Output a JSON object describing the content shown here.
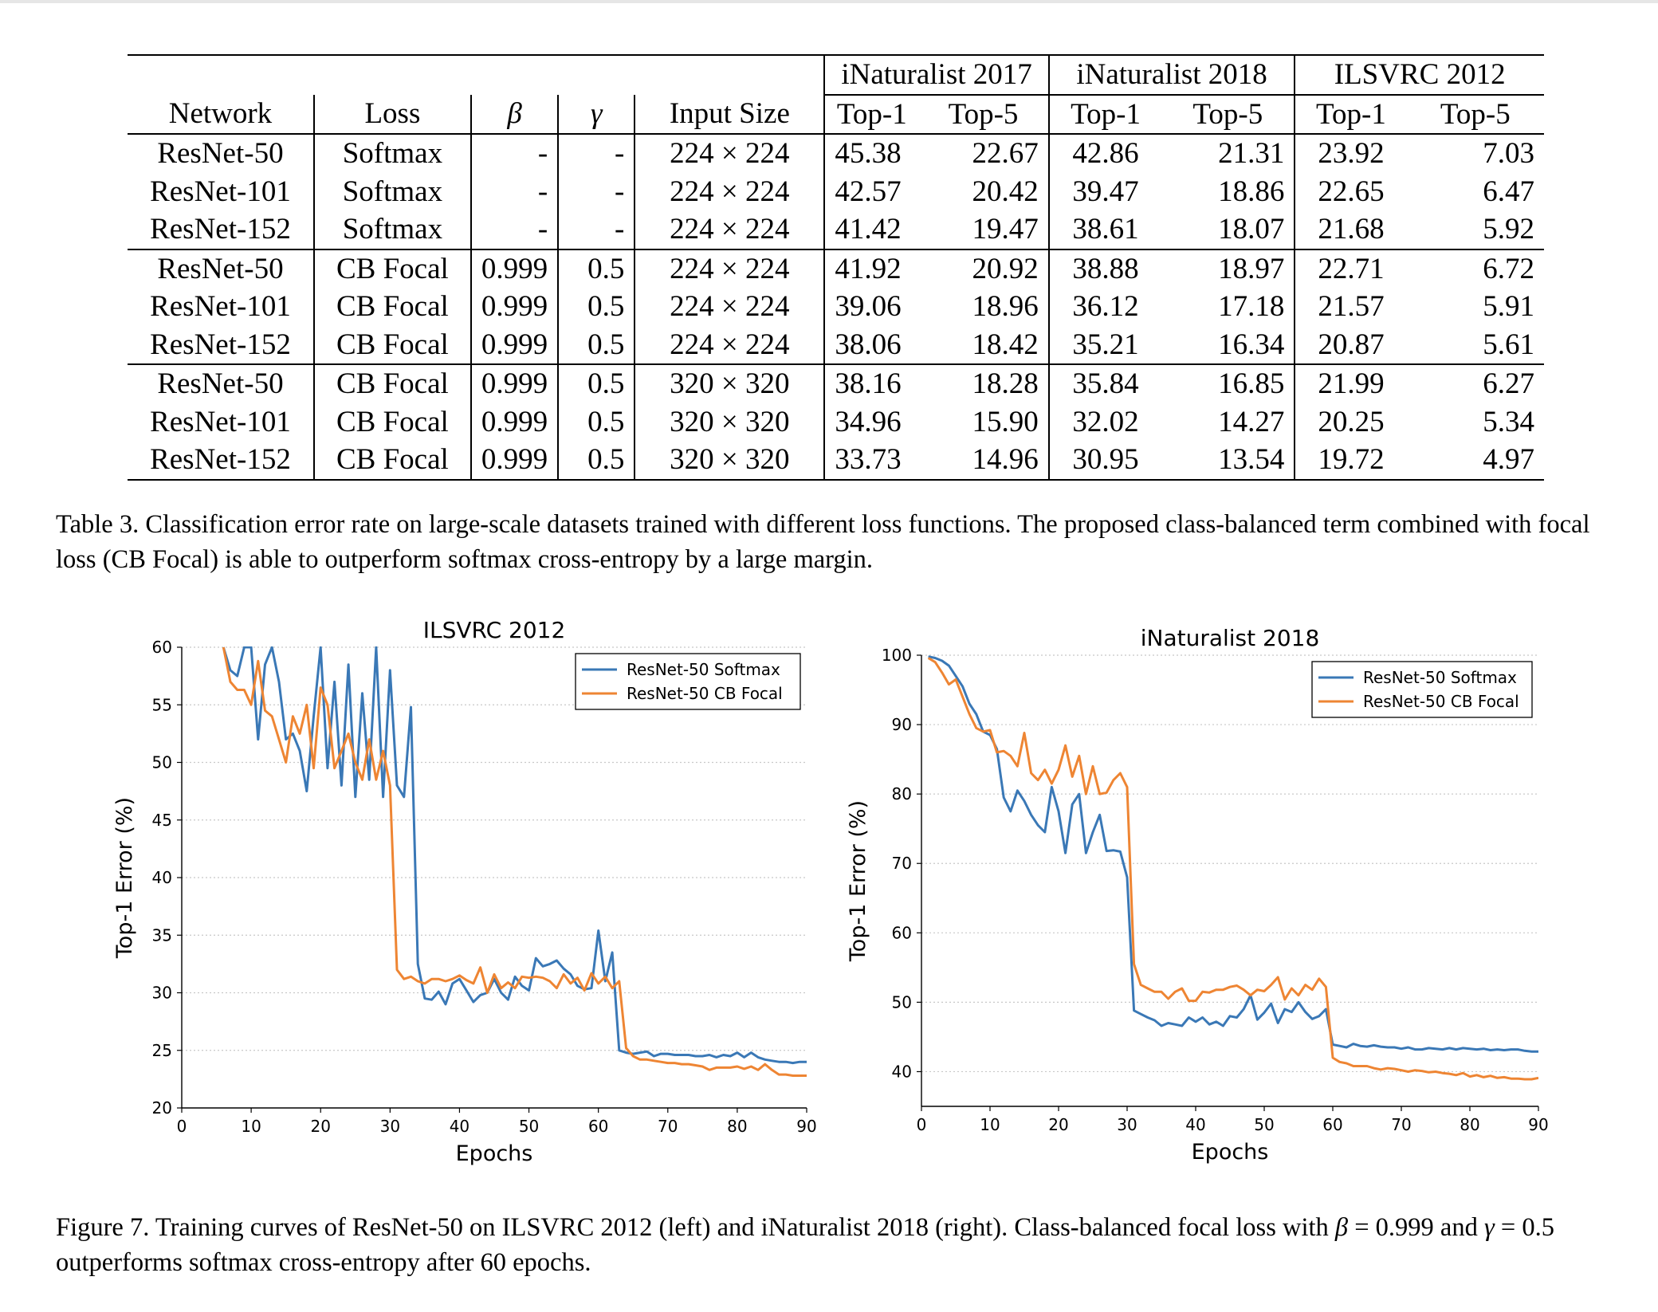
{
  "table": {
    "group_headers": [
      "iNaturalist 2017",
      "iNaturalist 2018",
      "ILSVRC 2012"
    ],
    "column_headers": [
      "Network",
      "Loss",
      "β",
      "γ",
      "Input Size",
      "Top-1",
      "Top-5",
      "Top-1",
      "Top-5",
      "Top-1",
      "Top-5"
    ],
    "rows": [
      [
        "ResNet-50",
        "Softmax",
        "-",
        "-",
        "224 × 224",
        "45.38",
        "22.67",
        "42.86",
        "21.31",
        "23.92",
        "7.03"
      ],
      [
        "ResNet-101",
        "Softmax",
        "-",
        "-",
        "224 × 224",
        "42.57",
        "20.42",
        "39.47",
        "18.86",
        "22.65",
        "6.47"
      ],
      [
        "ResNet-152",
        "Softmax",
        "-",
        "-",
        "224 × 224",
        "41.42",
        "19.47",
        "38.61",
        "18.07",
        "21.68",
        "5.92"
      ],
      [
        "ResNet-50",
        "CB Focal",
        "0.999",
        "0.5",
        "224 × 224",
        "41.92",
        "20.92",
        "38.88",
        "18.97",
        "22.71",
        "6.72"
      ],
      [
        "ResNet-101",
        "CB Focal",
        "0.999",
        "0.5",
        "224 × 224",
        "39.06",
        "18.96",
        "36.12",
        "17.18",
        "21.57",
        "5.91"
      ],
      [
        "ResNet-152",
        "CB Focal",
        "0.999",
        "0.5",
        "224 × 224",
        "38.06",
        "18.42",
        "35.21",
        "16.34",
        "20.87",
        "5.61"
      ],
      [
        "ResNet-50",
        "CB Focal",
        "0.999",
        "0.5",
        "320 × 320",
        "38.16",
        "18.28",
        "35.84",
        "16.85",
        "21.99",
        "6.27"
      ],
      [
        "ResNet-101",
        "CB Focal",
        "0.999",
        "0.5",
        "320 × 320",
        "34.96",
        "15.90",
        "32.02",
        "14.27",
        "20.25",
        "5.34"
      ],
      [
        "ResNet-152",
        "CB Focal",
        "0.999",
        "0.5",
        "320 × 320",
        "33.73",
        "14.96",
        "30.95",
        "13.54",
        "19.72",
        "4.97"
      ]
    ]
  },
  "table_caption": "Table 3. Classification error rate on large-scale datasets trained with different loss functions. The proposed class-balanced term combined with focal loss (CB Focal) is able to outperform softmax cross-entropy by a large margin.",
  "figure_caption": {
    "part1": "Figure 7. Training curves of ResNet-50 on ILSVRC 2012 (left) and iNaturalist 2018 (right). Class-balanced focal loss with ",
    "beta_sym": "β",
    "beta_val": " = 0.999 and ",
    "gamma_sym": "γ",
    "part2": " = 0.5 outperforms softmax cross-entropy after 60 epochs."
  },
  "chart_data": [
    {
      "type": "line",
      "title": "ILSVRC 2012",
      "xlabel": "Epochs",
      "ylabel": "Top-1 Error (%)",
      "xlim": [
        0,
        90
      ],
      "ylim": [
        20,
        60
      ],
      "xticks": [
        0,
        10,
        20,
        30,
        40,
        50,
        60,
        70,
        80,
        90
      ],
      "yticks": [
        20,
        25,
        30,
        35,
        40,
        45,
        50,
        55,
        60
      ],
      "grid": "horizontal dotted",
      "legend": "top-right",
      "series": [
        {
          "name": "ResNet-50 Softmax",
          "color": "#3a78b6",
          "x": [
            6,
            7,
            8,
            9,
            10,
            11,
            12,
            13,
            14,
            15,
            16,
            17,
            18,
            19,
            20,
            21,
            22,
            23,
            24,
            25,
            26,
            27,
            28,
            29,
            30,
            31,
            32,
            33,
            34,
            35,
            36,
            37,
            38,
            39,
            40,
            41,
            42,
            43,
            44,
            45,
            46,
            47,
            48,
            49,
            50,
            51,
            52,
            53,
            54,
            55,
            56,
            57,
            58,
            59,
            60,
            61,
            62,
            63,
            64,
            65,
            66,
            67,
            68,
            69,
            70,
            71,
            72,
            73,
            74,
            75,
            76,
            77,
            78,
            79,
            80,
            81,
            82,
            83,
            84,
            85,
            86,
            87,
            88,
            89,
            90
          ],
          "y": [
            60,
            58,
            57.5,
            60,
            60,
            52,
            58.5,
            60,
            57,
            52,
            52.5,
            51,
            47.5,
            54,
            60,
            49.5,
            57,
            48,
            58.5,
            47,
            56,
            48.5,
            60,
            47,
            58,
            48,
            47,
            54.8,
            32.5,
            29.5,
            29.4,
            30.1,
            29,
            30.8,
            31.2,
            30.2,
            29.2,
            29.8,
            30,
            31.2,
            30,
            29.4,
            31.4,
            30.6,
            30.2,
            33,
            32.3,
            32.5,
            32.8,
            32.1,
            31.6,
            30.6,
            30.3,
            30.4,
            35.4,
            31,
            33.5,
            25,
            24.8,
            24.7,
            24.8,
            24.9,
            24.5,
            24.7,
            24.7,
            24.6,
            24.6,
            24.6,
            24.5,
            24.5,
            24.6,
            24.4,
            24.6,
            24.5,
            24.8,
            24.4,
            24.8,
            24.4,
            24.2,
            24.1,
            24,
            24,
            23.9,
            24,
            24
          ]
        },
        {
          "name": "ResNet-50 CB Focal",
          "color": "#ee8533",
          "x": [
            6,
            7,
            8,
            9,
            10,
            11,
            12,
            13,
            14,
            15,
            16,
            17,
            18,
            19,
            20,
            21,
            22,
            23,
            24,
            25,
            26,
            27,
            28,
            29,
            30,
            31,
            32,
            33,
            34,
            35,
            36,
            37,
            38,
            39,
            40,
            41,
            42,
            43,
            44,
            45,
            46,
            47,
            48,
            49,
            50,
            51,
            52,
            53,
            54,
            55,
            56,
            57,
            58,
            59,
            60,
            61,
            62,
            63,
            64,
            65,
            66,
            67,
            68,
            69,
            70,
            71,
            72,
            73,
            74,
            75,
            76,
            77,
            78,
            79,
            80,
            81,
            82,
            83,
            84,
            85,
            86,
            87,
            88,
            89,
            90
          ],
          "y": [
            60,
            57,
            56.3,
            56.3,
            55,
            58.8,
            54.5,
            54,
            52,
            50,
            54,
            52.5,
            55,
            49.5,
            56.5,
            55,
            49.5,
            51,
            52.5,
            50,
            48.5,
            52,
            48.5,
            51,
            48,
            32,
            31.2,
            31.4,
            31,
            30.8,
            31.2,
            31.2,
            31,
            31.2,
            31.5,
            31.1,
            30.8,
            32.2,
            30,
            31.6,
            30.4,
            30.9,
            30.4,
            31.4,
            31.3,
            31.4,
            31.3,
            31,
            30.4,
            31.6,
            30.8,
            31.3,
            30.2,
            31.7,
            30.8,
            31.4,
            30.4,
            31,
            25.2,
            24.5,
            24.2,
            24.2,
            24.1,
            24,
            23.9,
            23.9,
            23.8,
            23.8,
            23.7,
            23.6,
            23.3,
            23.5,
            23.5,
            23.5,
            23.6,
            23.4,
            23.6,
            23.3,
            23.8,
            23.3,
            22.9,
            22.9,
            22.8,
            22.8,
            22.8
          ]
        }
      ]
    },
    {
      "type": "line",
      "title": "iNaturalist 2018",
      "xlabel": "Epochs",
      "ylabel": "Top-1 Error (%)",
      "xlim": [
        0,
        90
      ],
      "ylim": [
        35,
        100
      ],
      "xticks": [
        0,
        10,
        20,
        30,
        40,
        50,
        60,
        70,
        80,
        90
      ],
      "yticks": [
        40,
        50,
        60,
        70,
        80,
        90,
        100
      ],
      "grid": "horizontal dotted",
      "legend": "top-right",
      "series": [
        {
          "name": "ResNet-50 Softmax",
          "color": "#3a78b6",
          "x": [
            1,
            2,
            3,
            4,
            5,
            6,
            7,
            8,
            9,
            10,
            11,
            12,
            13,
            14,
            15,
            16,
            17,
            18,
            19,
            20,
            21,
            22,
            23,
            24,
            25,
            26,
            27,
            28,
            29,
            30,
            31,
            32,
            33,
            34,
            35,
            36,
            37,
            38,
            39,
            40,
            41,
            42,
            43,
            44,
            45,
            46,
            47,
            48,
            49,
            50,
            51,
            52,
            53,
            54,
            55,
            56,
            57,
            58,
            59,
            60,
            61,
            62,
            63,
            64,
            65,
            66,
            67,
            68,
            69,
            70,
            71,
            72,
            73,
            74,
            75,
            76,
            77,
            78,
            79,
            80,
            81,
            82,
            83,
            84,
            85,
            86,
            87,
            88,
            89,
            90
          ],
          "y": [
            99.8,
            99.6,
            99.2,
            98.5,
            97,
            95.5,
            93,
            91.5,
            89,
            88.5,
            86.5,
            79.5,
            77.5,
            80.5,
            79,
            77,
            75.5,
            74.5,
            81,
            77.5,
            71.5,
            78.5,
            80,
            71.5,
            74.5,
            77,
            71.8,
            71.9,
            71.7,
            68,
            48.8,
            48.3,
            47.8,
            47.4,
            46.6,
            47,
            46.8,
            46.6,
            47.8,
            47.2,
            47.8,
            46.8,
            47.2,
            46.6,
            48,
            47.8,
            49,
            51,
            47.5,
            48.5,
            49.8,
            47,
            49,
            48.6,
            50,
            48.6,
            47.6,
            48,
            49,
            43.9,
            43.7,
            43.5,
            44,
            43.7,
            43.6,
            43.8,
            43.6,
            43.5,
            43.5,
            43.3,
            43.5,
            43.2,
            43.2,
            43.4,
            43.3,
            43.2,
            43.4,
            43.2,
            43.4,
            43.3,
            43.2,
            43.3,
            43.1,
            43.2,
            43.1,
            43.2,
            43.2,
            43,
            42.9,
            42.9
          ]
        },
        {
          "name": "ResNet-50 CB Focal",
          "color": "#ee8533",
          "x": [
            1,
            2,
            3,
            4,
            5,
            6,
            7,
            8,
            9,
            10,
            11,
            12,
            13,
            14,
            15,
            16,
            17,
            18,
            19,
            20,
            21,
            22,
            23,
            24,
            25,
            26,
            27,
            28,
            29,
            30,
            31,
            32,
            33,
            34,
            35,
            36,
            37,
            38,
            39,
            40,
            41,
            42,
            43,
            44,
            45,
            46,
            47,
            48,
            49,
            50,
            51,
            52,
            53,
            54,
            55,
            56,
            57,
            58,
            59,
            60,
            61,
            62,
            63,
            64,
            65,
            66,
            67,
            68,
            69,
            70,
            71,
            72,
            73,
            74,
            75,
            76,
            77,
            78,
            79,
            80,
            81,
            82,
            83,
            84,
            85,
            86,
            87,
            88,
            89,
            90
          ],
          "y": [
            99.6,
            99,
            97.5,
            95.8,
            96.5,
            94,
            91.5,
            89.5,
            89,
            89.2,
            86,
            86.2,
            85.5,
            84,
            88.8,
            83,
            82,
            83.5,
            81.5,
            83.5,
            87,
            82.5,
            85.5,
            80,
            84,
            80,
            80.2,
            82,
            83,
            81,
            55.5,
            52.5,
            52,
            51.5,
            51.5,
            50.5,
            51.5,
            52,
            50.2,
            50.2,
            51.5,
            51.4,
            51.8,
            51.8,
            52.2,
            52.4,
            51.8,
            51,
            51.8,
            51.6,
            52.5,
            53.6,
            50.4,
            52,
            51,
            52.5,
            51.8,
            53.4,
            52.2,
            42,
            41.4,
            41.2,
            40.8,
            40.8,
            40.8,
            40.5,
            40.3,
            40.5,
            40.4,
            40.2,
            40,
            40.2,
            40.1,
            39.9,
            40,
            39.8,
            39.7,
            39.5,
            39.8,
            39.3,
            39.5,
            39.2,
            39.4,
            39.1,
            39.2,
            39,
            39,
            38.9,
            38.9,
            39.1
          ]
        }
      ]
    }
  ]
}
